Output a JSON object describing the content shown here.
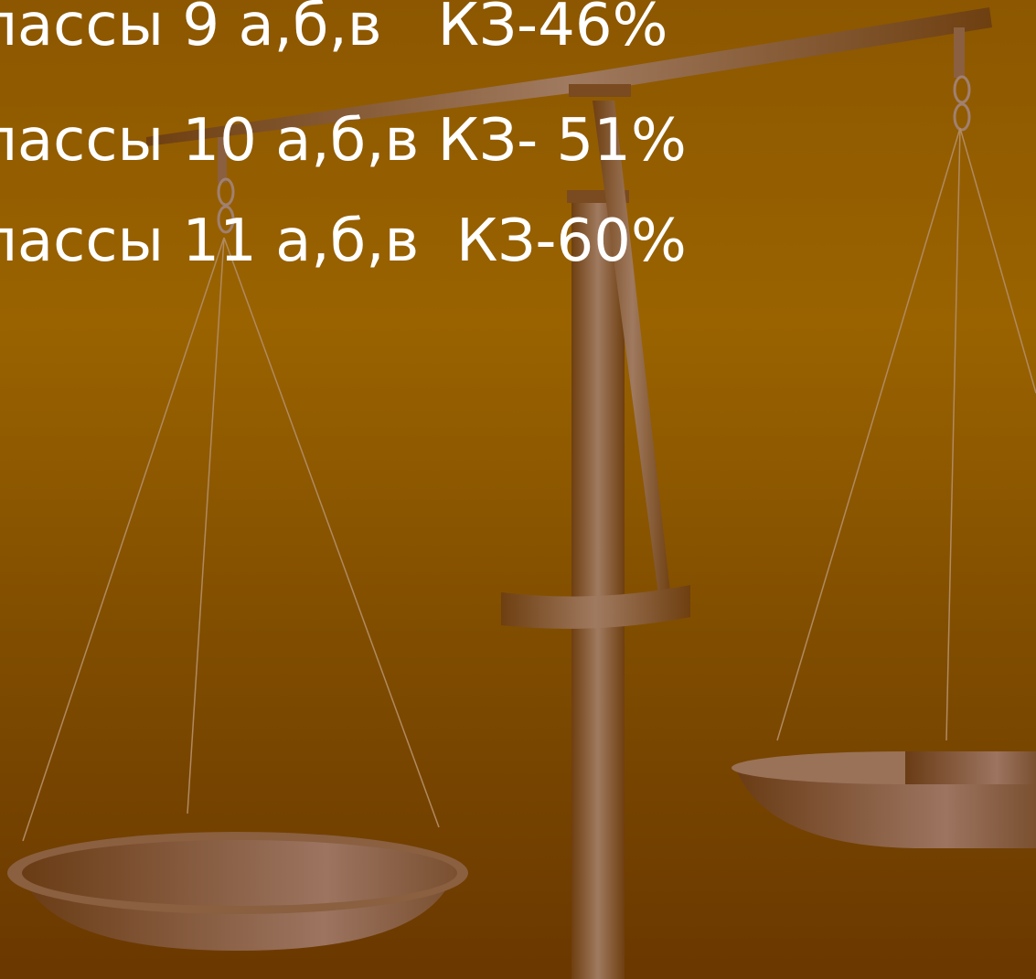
{
  "lines": [
    "лассы 9 а,б,в   КЗ-46%",
    "лассы 10 а,б,в КЗ- 51%",
    "лассы 11 а,б,в  КЗ-60%"
  ]
}
